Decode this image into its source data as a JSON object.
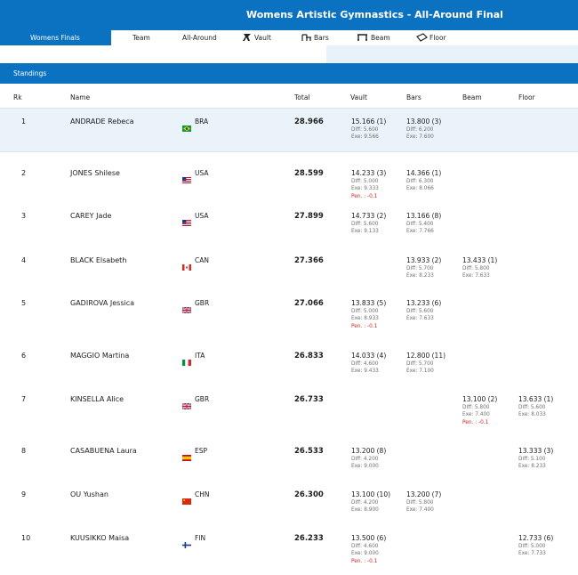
{
  "header": {
    "title": "Womens Artistic Gymnastics - All-Around Final"
  },
  "tabs": [
    {
      "label": "Womens Finals",
      "icon": ""
    },
    {
      "label": "Team",
      "icon": ""
    },
    {
      "label": "All-Around",
      "icon": ""
    },
    {
      "label": "Vault",
      "icon": "vault-icon"
    },
    {
      "label": "Bars",
      "icon": "bars-icon"
    },
    {
      "label": "Beam",
      "icon": "beam-icon"
    },
    {
      "label": "Floor",
      "icon": "floor-icon"
    }
  ],
  "section": {
    "title": "Standings"
  },
  "columns": {
    "rk": "Rk",
    "name": "Name",
    "total": "Total",
    "vault": "Vault",
    "bars": "Bars",
    "beam": "Beam",
    "floor": "Floor"
  },
  "colors": {
    "accent": "#0b72c2",
    "highlight": "#ebf3fa",
    "penalty": "#cc1f1f"
  },
  "rows": [
    {
      "rk": "1",
      "name": "ANDRADE Rebeca",
      "nat": "BRA",
      "total": "28.966",
      "vault": {
        "score": "15.166 (1)",
        "diff": "Diff: 5.600",
        "exe": "Exe: 9.566",
        "pen": ""
      },
      "bars": {
        "score": "13.800 (3)",
        "diff": "Diff: 6.200",
        "exe": "Exe: 7.600",
        "pen": ""
      }
    },
    {
      "rk": "2",
      "name": "JONES Shilese",
      "nat": "USA",
      "total": "28.599",
      "vault": {
        "score": "14.233 (3)",
        "diff": "Diff: 5.000",
        "exe": "Exe: 9.333",
        "pen": "Pen. : -0.1"
      },
      "bars": {
        "score": "14.366 (1)",
        "diff": "Diff: 6.300",
        "exe": "Exe: 8.066",
        "pen": ""
      }
    },
    {
      "rk": "3",
      "name": "CAREY Jade",
      "nat": "USA",
      "total": "27.899",
      "vault": {
        "score": "14.733 (2)",
        "diff": "Diff: 5.600",
        "exe": "Exe: 9.133",
        "pen": ""
      },
      "bars": {
        "score": "13.166 (8)",
        "diff": "Diff: 5.400",
        "exe": "Exe: 7.766",
        "pen": ""
      }
    },
    {
      "rk": "4",
      "name": "BLACK Elsabeth",
      "nat": "CAN",
      "total": "27.366",
      "bars": {
        "score": "13.933 (2)",
        "diff": "Diff: 5.700",
        "exe": "Exe: 8.233",
        "pen": ""
      },
      "beam": {
        "score": "13.433 (1)",
        "diff": "Diff: 5.800",
        "exe": "Exe: 7.633",
        "pen": ""
      }
    },
    {
      "rk": "5",
      "name": "GADIROVA Jessica",
      "nat": "GBR",
      "total": "27.066",
      "vault": {
        "score": "13.833 (5)",
        "diff": "Diff: 5.000",
        "exe": "Exe: 8.933",
        "pen": "Pen. : -0.1"
      },
      "bars": {
        "score": "13.233 (6)",
        "diff": "Diff: 5.600",
        "exe": "Exe: 7.633",
        "pen": ""
      }
    },
    {
      "rk": "6",
      "name": "MAGGIO Martina",
      "nat": "ITA",
      "total": "26.833",
      "vault": {
        "score": "14.033 (4)",
        "diff": "Diff: 4.600",
        "exe": "Exe: 9.433",
        "pen": ""
      },
      "bars": {
        "score": "12.800 (11)",
        "diff": "Diff: 5.700",
        "exe": "Exe: 7.100",
        "pen": ""
      }
    },
    {
      "rk": "7",
      "name": "KINSELLA Alice",
      "nat": "GBR",
      "total": "26.733",
      "beam": {
        "score": "13.100 (2)",
        "diff": "Diff: 5.800",
        "exe": "Exe: 7.400",
        "pen": "Pen. : -0.1"
      },
      "floor": {
        "score": "13.633 (1)",
        "diff": "Diff: 5.600",
        "exe": "Exe: 8.033",
        "pen": ""
      }
    },
    {
      "rk": "8",
      "name": "CASABUENA Laura",
      "nat": "ESP",
      "total": "26.533",
      "vault": {
        "score": "13.200 (8)",
        "diff": "Diff: 4.200",
        "exe": "Exe: 9.000",
        "pen": ""
      },
      "floor": {
        "score": "13.333 (3)",
        "diff": "Diff: 5.100",
        "exe": "Exe: 8.233",
        "pen": ""
      }
    },
    {
      "rk": "9",
      "name": "OU Yushan",
      "nat": "CHN",
      "total": "26.300",
      "vault": {
        "score": "13.100 (10)",
        "diff": "Diff: 4.200",
        "exe": "Exe: 8.900",
        "pen": ""
      },
      "bars": {
        "score": "13.200 (7)",
        "diff": "Diff: 5.800",
        "exe": "Exe: 7.400",
        "pen": ""
      }
    },
    {
      "rk": "10",
      "name": "KUUSIKKO Maisa",
      "nat": "FIN",
      "total": "26.233",
      "vault": {
        "score": "13.500 (6)",
        "diff": "Diff: 4.600",
        "exe": "Exe: 9.000",
        "pen": "Pen. : -0.1"
      },
      "floor": {
        "score": "12.733 (6)",
        "diff": "Diff: 5.000",
        "exe": "Exe: 7.733",
        "pen": ""
      }
    }
  ]
}
